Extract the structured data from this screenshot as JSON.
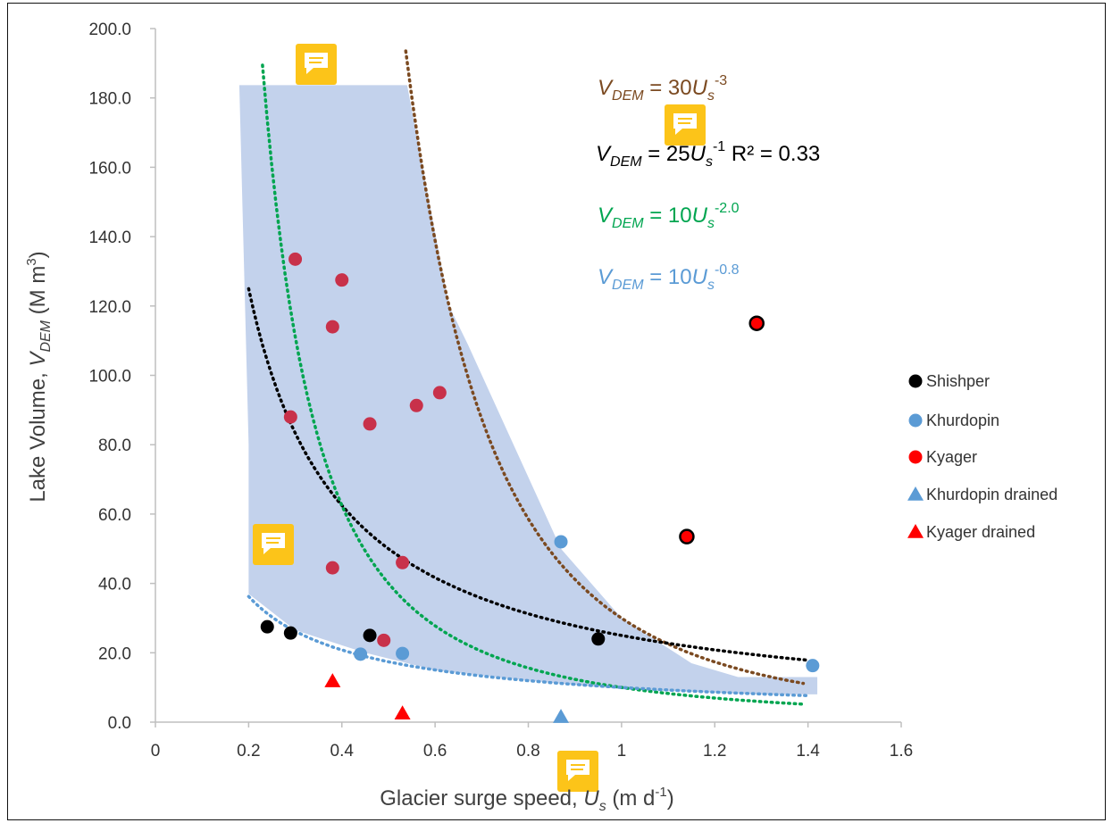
{
  "chart_data": {
    "type": "scatter",
    "xlabel": {
      "main": "Glacier surge speed, ",
      "var": "U",
      "sub": "s",
      "unit_pre": " (m d",
      "unit_sup": "-1",
      "unit_post": ")"
    },
    "ylabel": {
      "main": "Lake Volume, ",
      "var": "V",
      "sub": "DEM",
      "unit_pre": " (M m",
      "unit_sup": "3",
      "unit_post": ")"
    },
    "xlim": [
      0,
      1.6
    ],
    "ylim": [
      0,
      200
    ],
    "x_ticks": [
      "0",
      "0.2",
      "0.4",
      "0.6",
      "0.8",
      "1",
      "1.2",
      "1.4",
      "1.6"
    ],
    "y_ticks": [
      "0.0",
      "20.0",
      "40.0",
      "60.0",
      "80.0",
      "100.0",
      "120.0",
      "140.0",
      "160.0",
      "180.0",
      "200.0"
    ],
    "grid": false,
    "legend_position": "right",
    "series": [
      {
        "name": "Shishper",
        "marker": "circle",
        "color": "#000000",
        "points": [
          [
            0.24,
            27.5
          ],
          [
            0.29,
            25.7
          ],
          [
            0.46,
            25
          ],
          [
            0.95,
            24
          ]
        ]
      },
      {
        "name": "Khurdopin",
        "marker": "circle",
        "color": "#5b9bd5",
        "points": [
          [
            0.44,
            19.6
          ],
          [
            0.53,
            19.8
          ],
          [
            0.87,
            52
          ],
          [
            1.41,
            16.3
          ]
        ]
      },
      {
        "name": "Kyager",
        "marker": "circle",
        "color": "#ff0000",
        "points": [
          [
            1.14,
            53.5
          ],
          [
            1.29,
            115
          ]
        ]
      },
      {
        "name": "Khurdopin drained",
        "marker": "triangle",
        "color": "#5b9bd5",
        "points": [
          [
            0.87,
            1.5
          ]
        ]
      },
      {
        "name": "Kyager drained",
        "marker": "triangle",
        "color": "#ff0000",
        "points": [
          [
            0.38,
            11.8
          ],
          [
            0.53,
            2.5
          ]
        ]
      }
    ],
    "unlabeled_points": {
      "color": "#c8314a",
      "points": [
        [
          0.3,
          133.5
        ],
        [
          0.4,
          127.5
        ],
        [
          0.38,
          114
        ],
        [
          0.29,
          88
        ],
        [
          0.46,
          86
        ],
        [
          0.56,
          91.3
        ],
        [
          0.61,
          95
        ],
        [
          0.38,
          44.5
        ],
        [
          0.53,
          46
        ],
        [
          0.49,
          23.6
        ]
      ]
    },
    "trendlines": [
      {
        "label_var": "V",
        "label_sub": "DEM",
        "label_eq": " = 30",
        "label_u": "U",
        "label_us": "s",
        "label_exp": "-3",
        "label_extra": "",
        "color": "#7b4a21",
        "coef": 30,
        "exp": -3,
        "x_range": [
          0.53,
          1.39
        ]
      },
      {
        "label_var": "V",
        "label_sub": "DEM",
        "label_eq": " = 25",
        "label_u": "U",
        "label_us": "s",
        "label_exp": "-1",
        "label_extra": "  R² = 0.33",
        "color": "#000000",
        "coef": 25,
        "exp": -1,
        "x_range": [
          0.2,
          1.4
        ]
      },
      {
        "label_var": "V",
        "label_sub": "DEM",
        "label_eq": " = 10",
        "label_u": "U",
        "label_us": "s",
        "label_exp": "-2.0",
        "label_extra": "",
        "color": "#00a550",
        "coef": 10,
        "exp": -2,
        "x_range": [
          0.22,
          1.39
        ]
      },
      {
        "label_var": "V",
        "label_sub": "DEM",
        "label_eq": " = 10",
        "label_u": "U",
        "label_us": "s",
        "label_exp": "-0.8",
        "label_extra": "",
        "color": "#5b9bd5",
        "coef": 10,
        "exp": -0.8,
        "x_range": [
          0.2,
          1.4
        ]
      }
    ],
    "envelope": {
      "color": "#b4c7e7",
      "polygon": [
        [
          0.18,
          183.7
        ],
        [
          0.54,
          183.7
        ],
        [
          0.63,
          120
        ],
        [
          0.67,
          109
        ],
        [
          0.87,
          50
        ],
        [
          1.0,
          30
        ],
        [
          1.15,
          17
        ],
        [
          1.25,
          13
        ],
        [
          1.42,
          13
        ],
        [
          1.42,
          8
        ],
        [
          1.3,
          8
        ],
        [
          1.0,
          9.5
        ],
        [
          0.8,
          12
        ],
        [
          0.6,
          15
        ],
        [
          0.45,
          20
        ],
        [
          0.3,
          26.5
        ],
        [
          0.2,
          37
        ],
        [
          0.2,
          80
        ]
      ]
    }
  }
}
